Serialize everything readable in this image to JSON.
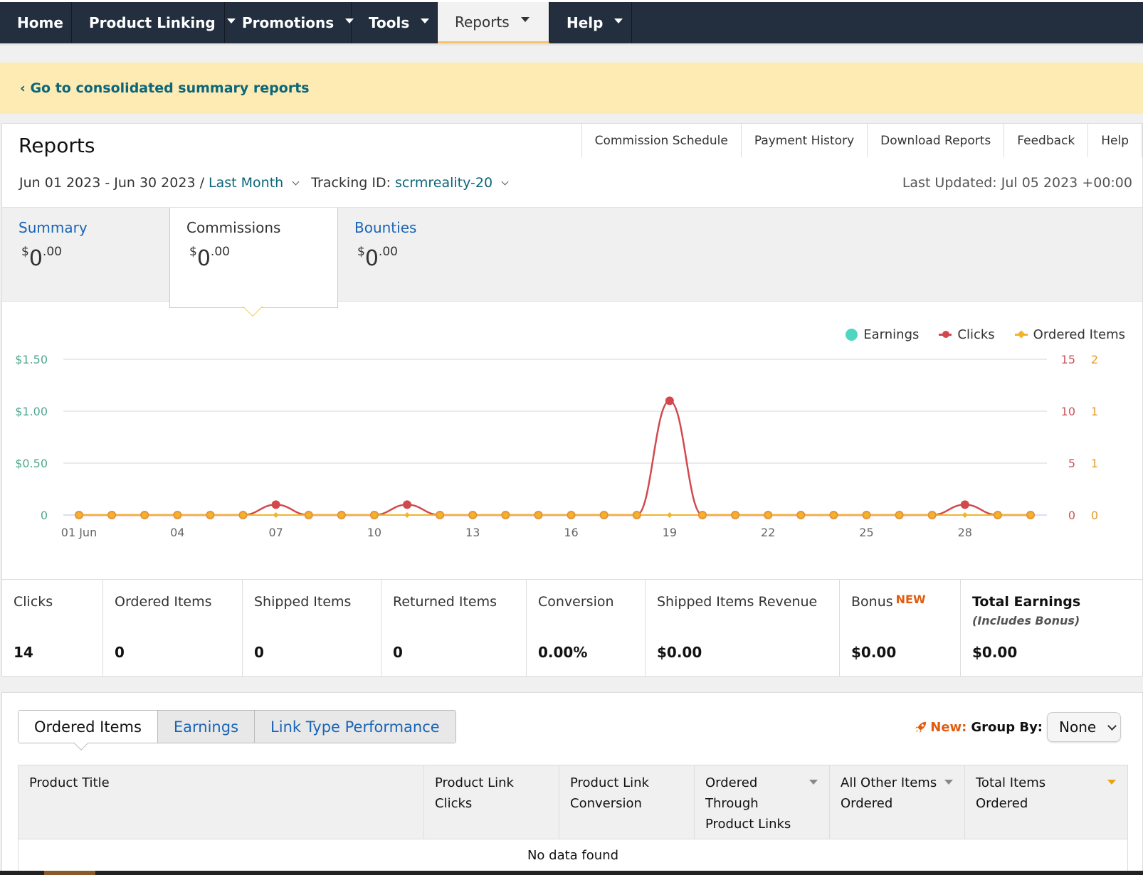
{
  "nav": {
    "items": [
      {
        "label": "Home",
        "dropdown": false,
        "active": false
      },
      {
        "label": "Product Linking",
        "dropdown": true,
        "active": false
      },
      {
        "label": "Promotions",
        "dropdown": true,
        "active": false
      },
      {
        "label": "Tools",
        "dropdown": true,
        "active": false
      },
      {
        "label": "Reports",
        "dropdown": true,
        "active": true
      },
      {
        "label": "Help",
        "dropdown": true,
        "active": false
      }
    ]
  },
  "banner": {
    "link_text": "‹ Go to consolidated summary reports"
  },
  "reports": {
    "title": "Reports",
    "buttons": [
      "Commission Schedule",
      "Payment History",
      "Download Reports",
      "Feedback",
      "Help"
    ],
    "date_range": "Jun 01 2023 - Jun 30 2023 /",
    "period": "Last Month",
    "tracking_label": "Tracking ID:",
    "tracking_id": "scrmreality-20",
    "last_updated": "Last Updated: Jul 05 2023 +00:00"
  },
  "summary_tiles": [
    {
      "label": "Summary",
      "currency": "$",
      "whole": "0",
      "cents": ".00",
      "selected": false
    },
    {
      "label": "Commissions",
      "currency": "$",
      "whole": "0",
      "cents": ".00",
      "selected": true
    },
    {
      "label": "Bounties",
      "currency": "$",
      "whole": "0",
      "cents": ".00",
      "selected": false
    }
  ],
  "chart_data": {
    "type": "line",
    "x": [
      "01 Jun",
      "02",
      "03",
      "04",
      "05",
      "06",
      "07",
      "08",
      "09",
      "10",
      "11",
      "12",
      "13",
      "14",
      "15",
      "16",
      "17",
      "18",
      "19",
      "20",
      "21",
      "22",
      "23",
      "24",
      "25",
      "26",
      "27",
      "28",
      "29",
      "30"
    ],
    "x_tick_labels": [
      "01 Jun",
      "04",
      "07",
      "10",
      "13",
      "16",
      "19",
      "22",
      "25",
      "28"
    ],
    "series": [
      {
        "name": "Earnings",
        "axis": "left",
        "color": "#4fd6c0",
        "values": [
          0,
          0,
          0,
          0,
          0,
          0,
          0,
          0,
          0,
          0,
          0,
          0,
          0,
          0,
          0,
          0,
          0,
          0,
          0,
          0,
          0,
          0,
          0,
          0,
          0,
          0,
          0,
          0,
          0,
          0
        ]
      },
      {
        "name": "Clicks",
        "axis": "right1",
        "color": "#d1494d",
        "values": [
          0,
          0,
          0,
          0,
          0,
          0,
          1,
          0,
          0,
          0,
          1,
          0,
          0,
          0,
          0,
          0,
          0,
          0,
          11,
          0,
          0,
          0,
          0,
          0,
          0,
          0,
          0,
          1,
          0,
          0
        ]
      },
      {
        "name": "Ordered Items",
        "axis": "right2",
        "color": "#f2b52a",
        "values": [
          0,
          0,
          0,
          0,
          0,
          0,
          0,
          0,
          0,
          0,
          0,
          0,
          0,
          0,
          0,
          0,
          0,
          0,
          0,
          0,
          0,
          0,
          0,
          0,
          0,
          0,
          0,
          0,
          0,
          0
        ]
      }
    ],
    "left_axis": {
      "ticks": [
        "0",
        "$0.50",
        "$1.00",
        "$1.50"
      ],
      "ylim": [
        0,
        1.5
      ],
      "color": "#4fa88f"
    },
    "right1_axis": {
      "ticks": [
        "0",
        "5",
        "10",
        "15"
      ],
      "ylim": [
        0,
        15
      ],
      "color": "#c8555a"
    },
    "right2_axis": {
      "ticks": [
        "0",
        "1",
        "1",
        "2"
      ],
      "ylim": [
        0,
        2
      ],
      "color": "#e39a2a"
    },
    "legend_position": "top-right",
    "grid": true
  },
  "metrics": [
    {
      "label": "Clicks",
      "value": "14"
    },
    {
      "label": "Ordered Items",
      "value": "0"
    },
    {
      "label": "Shipped Items",
      "value": "0"
    },
    {
      "label": "Returned Items",
      "value": "0"
    },
    {
      "label": "Conversion",
      "value": "0.00%"
    },
    {
      "label": "Shipped Items Revenue",
      "value": "$0.00"
    },
    {
      "label": "Bonus",
      "badge": "NEW",
      "value": "$0.00"
    },
    {
      "label": "Total Earnings",
      "sub": "(Includes Bonus)",
      "value": "$0.00"
    }
  ],
  "lower": {
    "tabs": [
      "Ordered Items",
      "Earnings",
      "Link Type Performance"
    ],
    "active_tab": "Ordered Items",
    "new_label": "New:",
    "group_by_label": "Group By:",
    "group_by_value": "None",
    "columns": [
      {
        "line1": "Product Title",
        "line2": "",
        "line3": "",
        "sort": "none"
      },
      {
        "line1": "Product Link Clicks",
        "line2": "",
        "line3": "",
        "sort": "none"
      },
      {
        "line1": "Product Link",
        "line2": "Conversion",
        "line3": "",
        "sort": "none"
      },
      {
        "line1": "Ordered",
        "line2": "Through",
        "line3": "Product Links",
        "sort": "available"
      },
      {
        "line1": "All Other Items",
        "line2": "Ordered",
        "line3": "",
        "sort": "available"
      },
      {
        "line1": "Total Items",
        "line2": "Ordered",
        "line3": "",
        "sort": "active"
      }
    ],
    "empty_text": "No data found"
  }
}
